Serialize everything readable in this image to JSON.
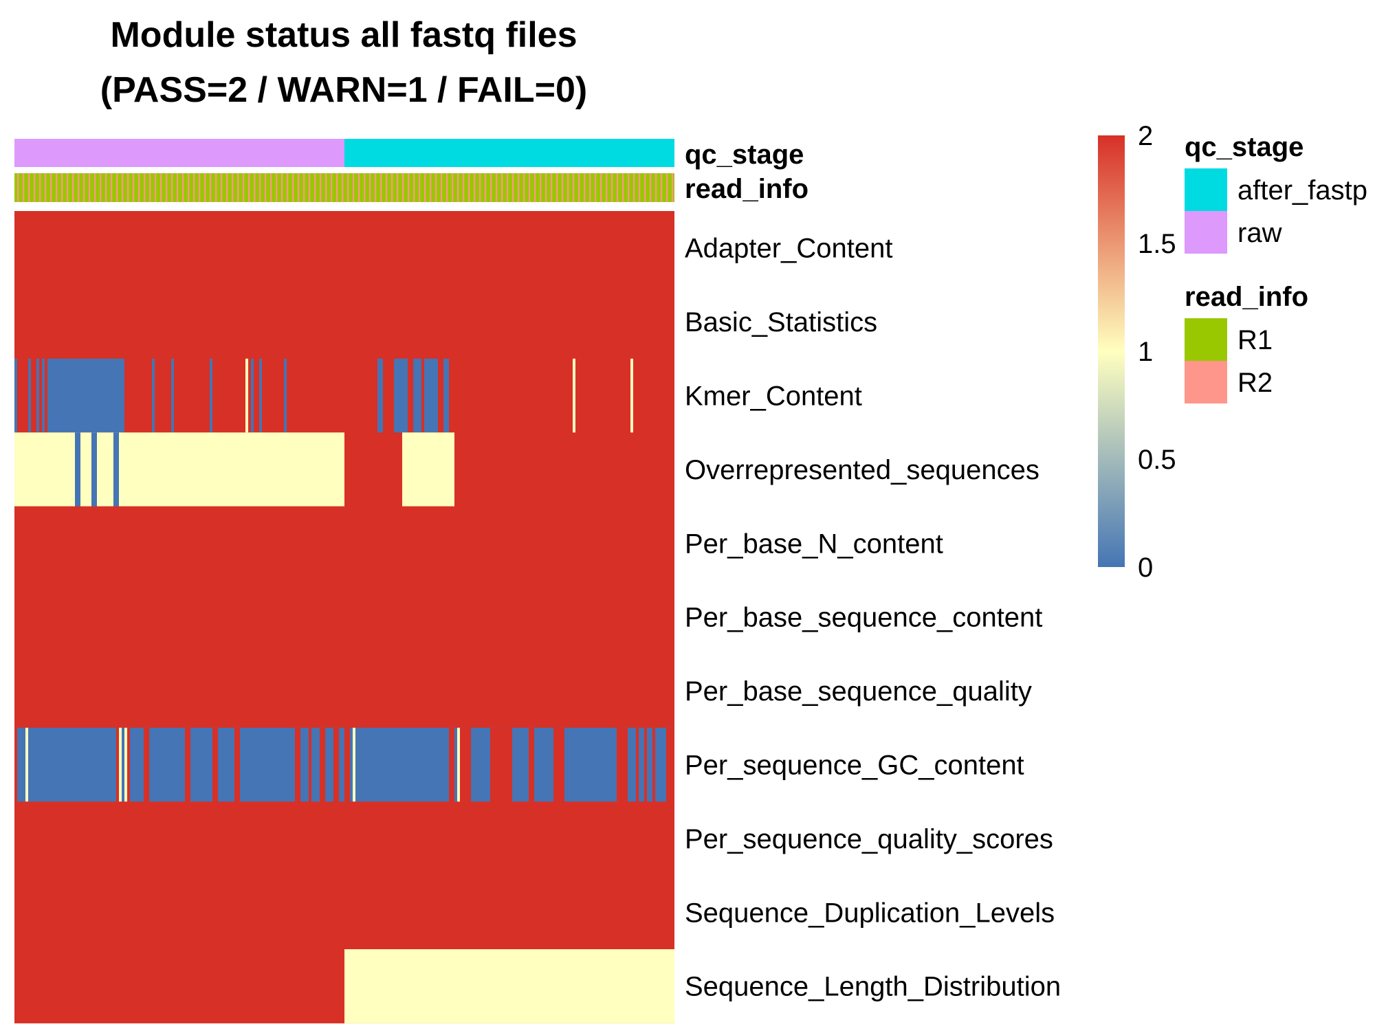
{
  "chart_data": {
    "type": "heatmap",
    "title": "Module status all fastq files",
    "subtitle": "(PASS=2 / WARN=1 / FAIL=0)",
    "value_range": [
      0,
      2
    ],
    "colorbar": {
      "ticks": [
        "0",
        "0.5",
        "1",
        "1.5",
        "2"
      ],
      "colors": [
        "#4575b4",
        "#ffffbf",
        "#d73027"
      ]
    },
    "annotations": [
      {
        "name": "qc_stage",
        "levels": [
          {
            "label": "after_fastp",
            "color": "#00dbe1"
          },
          {
            "label": "raw",
            "color": "#dd99fb"
          }
        ],
        "column_groups": [
          {
            "level": "raw",
            "fraction": 0.5
          },
          {
            "level": "after_fastp",
            "fraction": 0.5
          }
        ]
      },
      {
        "name": "read_info",
        "levels": [
          {
            "label": "R1",
            "color": "#99c800"
          },
          {
            "label": "R2",
            "color": "#ff968b"
          }
        ],
        "pattern": "alternating"
      }
    ],
    "n_columns": 240,
    "rows": [
      {
        "name": "Adapter_Content",
        "default": 2,
        "exceptions": []
      },
      {
        "name": "Basic_Statistics",
        "default": 2,
        "exceptions": []
      },
      {
        "name": "Kmer_Content",
        "default": 2,
        "exceptions": [
          [
            0,
            1,
            0
          ],
          [
            5,
            6,
            0
          ],
          [
            8,
            9,
            0
          ],
          [
            10,
            11,
            0
          ],
          [
            12,
            13,
            0
          ],
          [
            13,
            16,
            0
          ],
          [
            16,
            18,
            0
          ],
          [
            18,
            40,
            0
          ],
          [
            50,
            51,
            0
          ],
          [
            57,
            58,
            0
          ],
          [
            71,
            72,
            0
          ],
          [
            84,
            85,
            1
          ],
          [
            86,
            87,
            0
          ],
          [
            89,
            90,
            0
          ],
          [
            98,
            99,
            0
          ],
          [
            132,
            134,
            0
          ],
          [
            138,
            141,
            0
          ],
          [
            141,
            143,
            0
          ],
          [
            145,
            148,
            0
          ],
          [
            149,
            152,
            0
          ],
          [
            152,
            154,
            0
          ],
          [
            156,
            158,
            0
          ],
          [
            203,
            204,
            1
          ],
          [
            224,
            225,
            1
          ]
        ]
      },
      {
        "name": "Overrepresented_sequences",
        "default": 2,
        "exceptions": [
          [
            0,
            120,
            1
          ],
          [
            141,
            160,
            1
          ],
          [
            22,
            24,
            0
          ],
          [
            28,
            30,
            0
          ],
          [
            36,
            38,
            0
          ]
        ]
      },
      {
        "name": "Per_base_N_content",
        "default": 2,
        "exceptions": []
      },
      {
        "name": "Per_base_sequence_content",
        "default": 2,
        "exceptions": []
      },
      {
        "name": "Per_base_sequence_quality",
        "default": 2,
        "exceptions": []
      },
      {
        "name": "Per_sequence_GC_content",
        "default": 0,
        "exceptions": [
          [
            0,
            1,
            2
          ],
          [
            4,
            5,
            1
          ],
          [
            37,
            38,
            2
          ],
          [
            38,
            39,
            1
          ],
          [
            40,
            41,
            1
          ],
          [
            41,
            42,
            2
          ],
          [
            47,
            49,
            2
          ],
          [
            62,
            64,
            2
          ],
          [
            72,
            74,
            2
          ],
          [
            80,
            82,
            2
          ],
          [
            102,
            104,
            2
          ],
          [
            107,
            108,
            2
          ],
          [
            111,
            113,
            2
          ],
          [
            116,
            118,
            2
          ],
          [
            120,
            122,
            2
          ],
          [
            123,
            124,
            1
          ],
          [
            158,
            160,
            2
          ],
          [
            161,
            162,
            1
          ],
          [
            162,
            166,
            2
          ],
          [
            173,
            181,
            2
          ],
          [
            187,
            189,
            2
          ],
          [
            196,
            200,
            2
          ],
          [
            219,
            223,
            2
          ],
          [
            226,
            227,
            2
          ],
          [
            229,
            230,
            2
          ],
          [
            232,
            233,
            2
          ],
          [
            237,
            240,
            2
          ]
        ]
      },
      {
        "name": "Per_sequence_quality_scores",
        "default": 2,
        "exceptions": []
      },
      {
        "name": "Sequence_Duplication_Levels",
        "default": 2,
        "exceptions": []
      },
      {
        "name": "Sequence_Length_Distribution",
        "default": 2,
        "exceptions": [
          [
            120,
            240,
            1
          ]
        ]
      }
    ]
  }
}
